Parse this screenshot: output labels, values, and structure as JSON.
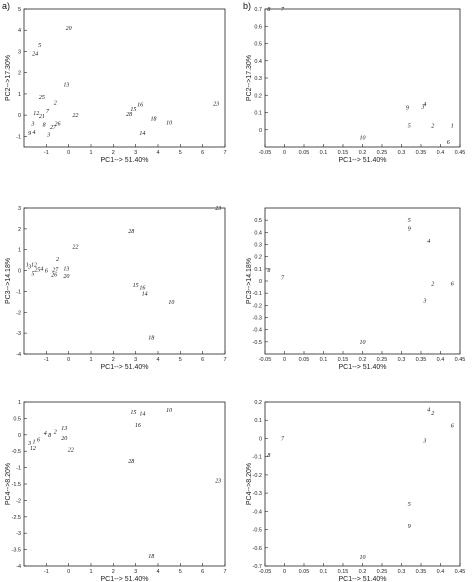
{
  "panel_letters": [
    "a)",
    "b)"
  ],
  "chart_data": [
    {
      "type": "scatter",
      "id": "a1",
      "xlabel": "PC1--> 51.40%",
      "ylabel": "PC2-->17.30%",
      "xlim": [
        -2,
        7
      ],
      "ylim": [
        -1.5,
        5
      ],
      "xticks": [
        -1,
        0,
        1,
        2,
        3,
        4,
        5,
        6,
        7
      ],
      "yticks": [
        -1,
        0,
        1,
        2,
        3,
        4,
        5
      ],
      "points": [
        {
          "label": "20",
          "x": 0.0,
          "y": 4.1
        },
        {
          "label": "5",
          "x": -1.3,
          "y": 3.3
        },
        {
          "label": "24",
          "x": -1.5,
          "y": 2.9
        },
        {
          "label": "13",
          "x": -0.1,
          "y": 1.45
        },
        {
          "label": "25",
          "x": -1.2,
          "y": 0.85
        },
        {
          "label": "2",
          "x": -0.6,
          "y": 0.6
        },
        {
          "label": "12",
          "x": -1.45,
          "y": 0.1
        },
        {
          "label": "7",
          "x": -0.95,
          "y": 0.2
        },
        {
          "label": "21",
          "x": -1.2,
          "y": -0.05
        },
        {
          "label": "22",
          "x": 0.3,
          "y": 0.0
        },
        {
          "label": "26",
          "x": -0.5,
          "y": -0.4
        },
        {
          "label": "3",
          "x": -1.6,
          "y": -0.4
        },
        {
          "label": "8",
          "x": -1.1,
          "y": -0.45
        },
        {
          "label": "27",
          "x": -0.7,
          "y": -0.55
        },
        {
          "label": "4",
          "x": -1.55,
          "y": -0.8
        },
        {
          "label": "9",
          "x": -1.75,
          "y": -0.85
        },
        {
          "label": "3",
          "x": -0.9,
          "y": -0.9
        },
        {
          "label": "16",
          "x": 3.2,
          "y": 0.5
        },
        {
          "label": "15",
          "x": 2.9,
          "y": 0.3
        },
        {
          "label": "28",
          "x": 2.7,
          "y": 0.05
        },
        {
          "label": "18",
          "x": 3.8,
          "y": -0.15
        },
        {
          "label": "10",
          "x": 4.5,
          "y": -0.35
        },
        {
          "label": "14",
          "x": 3.3,
          "y": -0.85
        },
        {
          "label": "23",
          "x": 6.6,
          "y": 0.55
        }
      ]
    },
    {
      "type": "scatter",
      "id": "b1",
      "xlabel": "PC1--> 51.40%",
      "ylabel": "PC2-->17.30%",
      "xlim": [
        -0.05,
        0.45
      ],
      "ylim": [
        -0.1,
        0.7
      ],
      "xticks": [
        -0.05,
        0,
        0.05,
        0.1,
        0.15,
        0.2,
        0.25,
        0.3,
        0.35,
        0.4,
        0.45
      ],
      "yticks": [
        0,
        0.1,
        0.2,
        0.3,
        0.4,
        0.5,
        0.6,
        0.7
      ],
      "points": [
        {
          "label": "8",
          "x": -0.04,
          "y": 0.7
        },
        {
          "label": "7",
          "x": -0.005,
          "y": 0.7
        },
        {
          "label": "4",
          "x": 0.36,
          "y": 0.15
        },
        {
          "label": "3",
          "x": 0.355,
          "y": 0.135
        },
        {
          "label": "9",
          "x": 0.315,
          "y": 0.13
        },
        {
          "label": "5",
          "x": 0.32,
          "y": 0.025
        },
        {
          "label": "2",
          "x": 0.38,
          "y": 0.025
        },
        {
          "label": "1",
          "x": 0.43,
          "y": 0.025
        },
        {
          "label": "6",
          "x": 0.42,
          "y": -0.07
        },
        {
          "label": "10",
          "x": 0.2,
          "y": -0.045
        }
      ]
    },
    {
      "type": "scatter",
      "id": "a2",
      "xlabel": "PC1--> 51.40%",
      "ylabel": "PC3-->14.18%",
      "xlim": [
        -2,
        7
      ],
      "ylim": [
        -4,
        3
      ],
      "xticks": [
        -1,
        0,
        1,
        2,
        3,
        4,
        5,
        6,
        7
      ],
      "yticks": [
        -4,
        -3,
        -2,
        -1,
        0,
        1,
        2,
        3
      ],
      "points": [
        {
          "label": "23",
          "x": 6.7,
          "y": 3.0
        },
        {
          "label": "28",
          "x": 2.8,
          "y": 1.9
        },
        {
          "label": "22",
          "x": 0.3,
          "y": 1.15
        },
        {
          "label": "2",
          "x": -0.5,
          "y": 0.55
        },
        {
          "label": "12",
          "x": -1.55,
          "y": 0.3
        },
        {
          "label": "3",
          "x": -1.75,
          "y": 0.2
        },
        {
          "label": "1",
          "x": -1.85,
          "y": 0.3
        },
        {
          "label": "25",
          "x": -1.4,
          "y": 0.05
        },
        {
          "label": "4",
          "x": -1.2,
          "y": 0.1
        },
        {
          "label": "6",
          "x": -1.0,
          "y": 0.0
        },
        {
          "label": "27",
          "x": -0.6,
          "y": 0.05
        },
        {
          "label": "13",
          "x": -0.1,
          "y": 0.1
        },
        {
          "label": "26",
          "x": -0.65,
          "y": -0.2
        },
        {
          "label": "20",
          "x": -0.1,
          "y": -0.25
        },
        {
          "label": "5",
          "x": -1.6,
          "y": -0.15
        },
        {
          "label": "15",
          "x": 3.0,
          "y": -0.7
        },
        {
          "label": "16",
          "x": 3.3,
          "y": -0.8
        },
        {
          "label": "14",
          "x": 3.4,
          "y": -1.1
        },
        {
          "label": "10",
          "x": 4.6,
          "y": -1.5
        },
        {
          "label": "18",
          "x": 3.7,
          "y": -3.2
        }
      ]
    },
    {
      "type": "scatter",
      "id": "b2",
      "xlabel": "PC1--> 51.40%",
      "ylabel": "PC3-->14.18%",
      "xlim": [
        -0.05,
        0.45
      ],
      "ylim": [
        -0.6,
        0.6
      ],
      "xticks": [
        -0.05,
        0,
        0.05,
        0.1,
        0.15,
        0.2,
        0.25,
        0.3,
        0.35,
        0.4,
        0.45
      ],
      "yticks": [
        -0.5,
        -0.4,
        -0.3,
        -0.2,
        -0.1,
        0,
        0.1,
        0.2,
        0.3,
        0.4,
        0.5
      ],
      "points": [
        {
          "label": "5",
          "x": 0.32,
          "y": 0.5
        },
        {
          "label": "9",
          "x": 0.32,
          "y": 0.43
        },
        {
          "label": "4",
          "x": 0.37,
          "y": 0.33
        },
        {
          "label": "8",
          "x": -0.04,
          "y": 0.09
        },
        {
          "label": "7",
          "x": -0.005,
          "y": 0.03
        },
        {
          "label": "2",
          "x": 0.38,
          "y": -0.02
        },
        {
          "label": "6",
          "x": 0.43,
          "y": -0.02
        },
        {
          "label": "3",
          "x": 0.36,
          "y": -0.16
        },
        {
          "label": "10",
          "x": 0.2,
          "y": -0.5
        }
      ]
    },
    {
      "type": "scatter",
      "id": "a3",
      "xlabel": "PC1--> 51.40%",
      "ylabel": "PC4-->8.20%",
      "xlim": [
        -2,
        7
      ],
      "ylim": [
        -4,
        1
      ],
      "xticks": [
        -1,
        0,
        1,
        2,
        3,
        4,
        5,
        6,
        7
      ],
      "yticks": [
        -4,
        -3.5,
        -3,
        -2.5,
        -2,
        -1.5,
        -1,
        -0.5,
        0,
        0.5,
        1
      ],
      "points": [
        {
          "label": "15",
          "x": 2.9,
          "y": 0.7
        },
        {
          "label": "14",
          "x": 3.3,
          "y": 0.65
        },
        {
          "label": "10",
          "x": 4.5,
          "y": 0.75
        },
        {
          "label": "16",
          "x": 3.1,
          "y": 0.3
        },
        {
          "label": "13",
          "x": -0.2,
          "y": 0.2
        },
        {
          "label": "2",
          "x": -0.6,
          "y": 0.1
        },
        {
          "label": "4",
          "x": -1.05,
          "y": 0.05
        },
        {
          "label": "8",
          "x": -0.85,
          "y": 0.0
        },
        {
          "label": "20",
          "x": -0.2,
          "y": -0.1
        },
        {
          "label": "6",
          "x": -1.35,
          "y": -0.15
        },
        {
          "label": "1",
          "x": -1.55,
          "y": -0.2
        },
        {
          "label": "3",
          "x": -1.75,
          "y": -0.25
        },
        {
          "label": "12",
          "x": -1.6,
          "y": -0.4
        },
        {
          "label": "22",
          "x": 0.1,
          "y": -0.45
        },
        {
          "label": "28",
          "x": 2.8,
          "y": -0.8
        },
        {
          "label": "23",
          "x": 6.7,
          "y": -1.4
        },
        {
          "label": "18",
          "x": 3.7,
          "y": -3.7
        }
      ]
    },
    {
      "type": "scatter",
      "id": "b3",
      "xlabel": "PC1--> 51.40%",
      "ylabel": "PC4-->8.20%",
      "xlim": [
        -0.05,
        0.45
      ],
      "ylim": [
        -0.7,
        0.2
      ],
      "xticks": [
        -0.05,
        0,
        0.05,
        0.1,
        0.15,
        0.2,
        0.25,
        0.3,
        0.35,
        0.4,
        0.45
      ],
      "yticks": [
        -0.7,
        -0.6,
        -0.5,
        -0.4,
        -0.3,
        -0.2,
        -0.1,
        0,
        0.1,
        0.2
      ],
      "points": [
        {
          "label": "4",
          "x": 0.37,
          "y": 0.16
        },
        {
          "label": "2",
          "x": 0.38,
          "y": 0.14
        },
        {
          "label": "6",
          "x": 0.43,
          "y": 0.07
        },
        {
          "label": "7",
          "x": -0.005,
          "y": 0.0
        },
        {
          "label": "3",
          "x": 0.36,
          "y": -0.01
        },
        {
          "label": "8",
          "x": -0.04,
          "y": -0.09
        },
        {
          "label": "5",
          "x": 0.32,
          "y": -0.36
        },
        {
          "label": "9",
          "x": 0.32,
          "y": -0.48
        },
        {
          "label": "10",
          "x": 0.2,
          "y": -0.65
        }
      ]
    }
  ]
}
